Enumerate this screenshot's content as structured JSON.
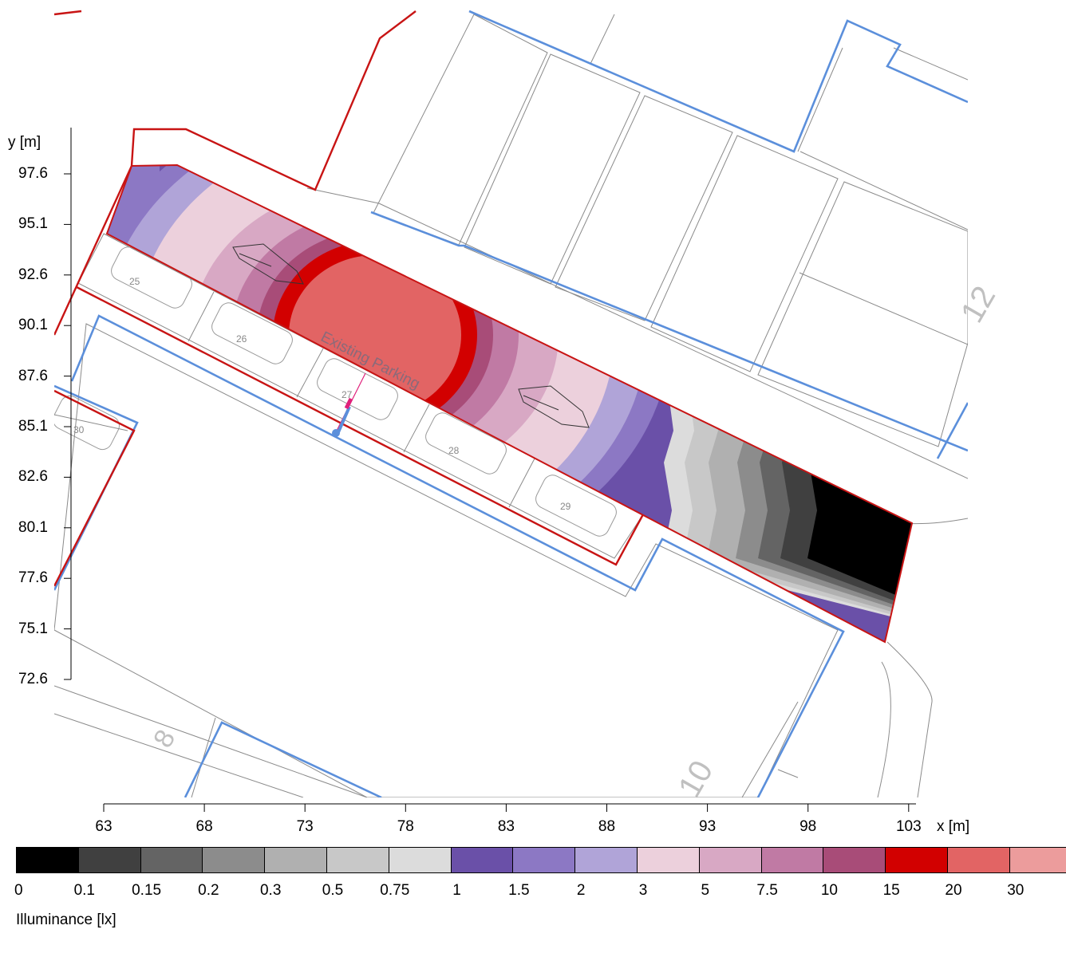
{
  "chart_data": {
    "type": "heatmap",
    "title": "",
    "xlabel": "x [m]",
    "ylabel": "y [m]",
    "x_ticks": [
      "63",
      "68",
      "73",
      "78",
      "83",
      "88",
      "93",
      "98",
      "103"
    ],
    "y_ticks": [
      "97.6",
      "95.1",
      "92.6",
      "90.1",
      "87.6",
      "85.1",
      "82.6",
      "80.1",
      "77.6",
      "75.1",
      "72.6"
    ],
    "xlim": [
      63,
      103
    ],
    "ylim": [
      72.6,
      97.6
    ],
    "legend": {
      "title": "Illuminance [lx]",
      "levels": [
        "0",
        "0.1",
        "0.15",
        "0.2",
        "0.3",
        "0.5",
        "0.75",
        "1",
        "1.5",
        "2",
        "3",
        "5",
        "7.5",
        "10",
        "15",
        "20",
        "30"
      ],
      "colors": [
        "#000000",
        "#404040",
        "#646464",
        "#8c8c8c",
        "#b0b0b0",
        "#c8c8c8",
        "#dcdcdc",
        "#6a50a8",
        "#8c78c4",
        "#b0a4d8",
        "#ecd0dc",
        "#d8a8c4",
        "#c07aa4",
        "#a84c78",
        "#d20000",
        "#e26464",
        "#ec9c9c"
      ]
    },
    "labels": {
      "area": "Existing Parking",
      "spaces": [
        "25",
        "26",
        "27",
        "28",
        "29",
        "30"
      ],
      "plots": [
        "8",
        "10",
        "12"
      ]
    }
  }
}
